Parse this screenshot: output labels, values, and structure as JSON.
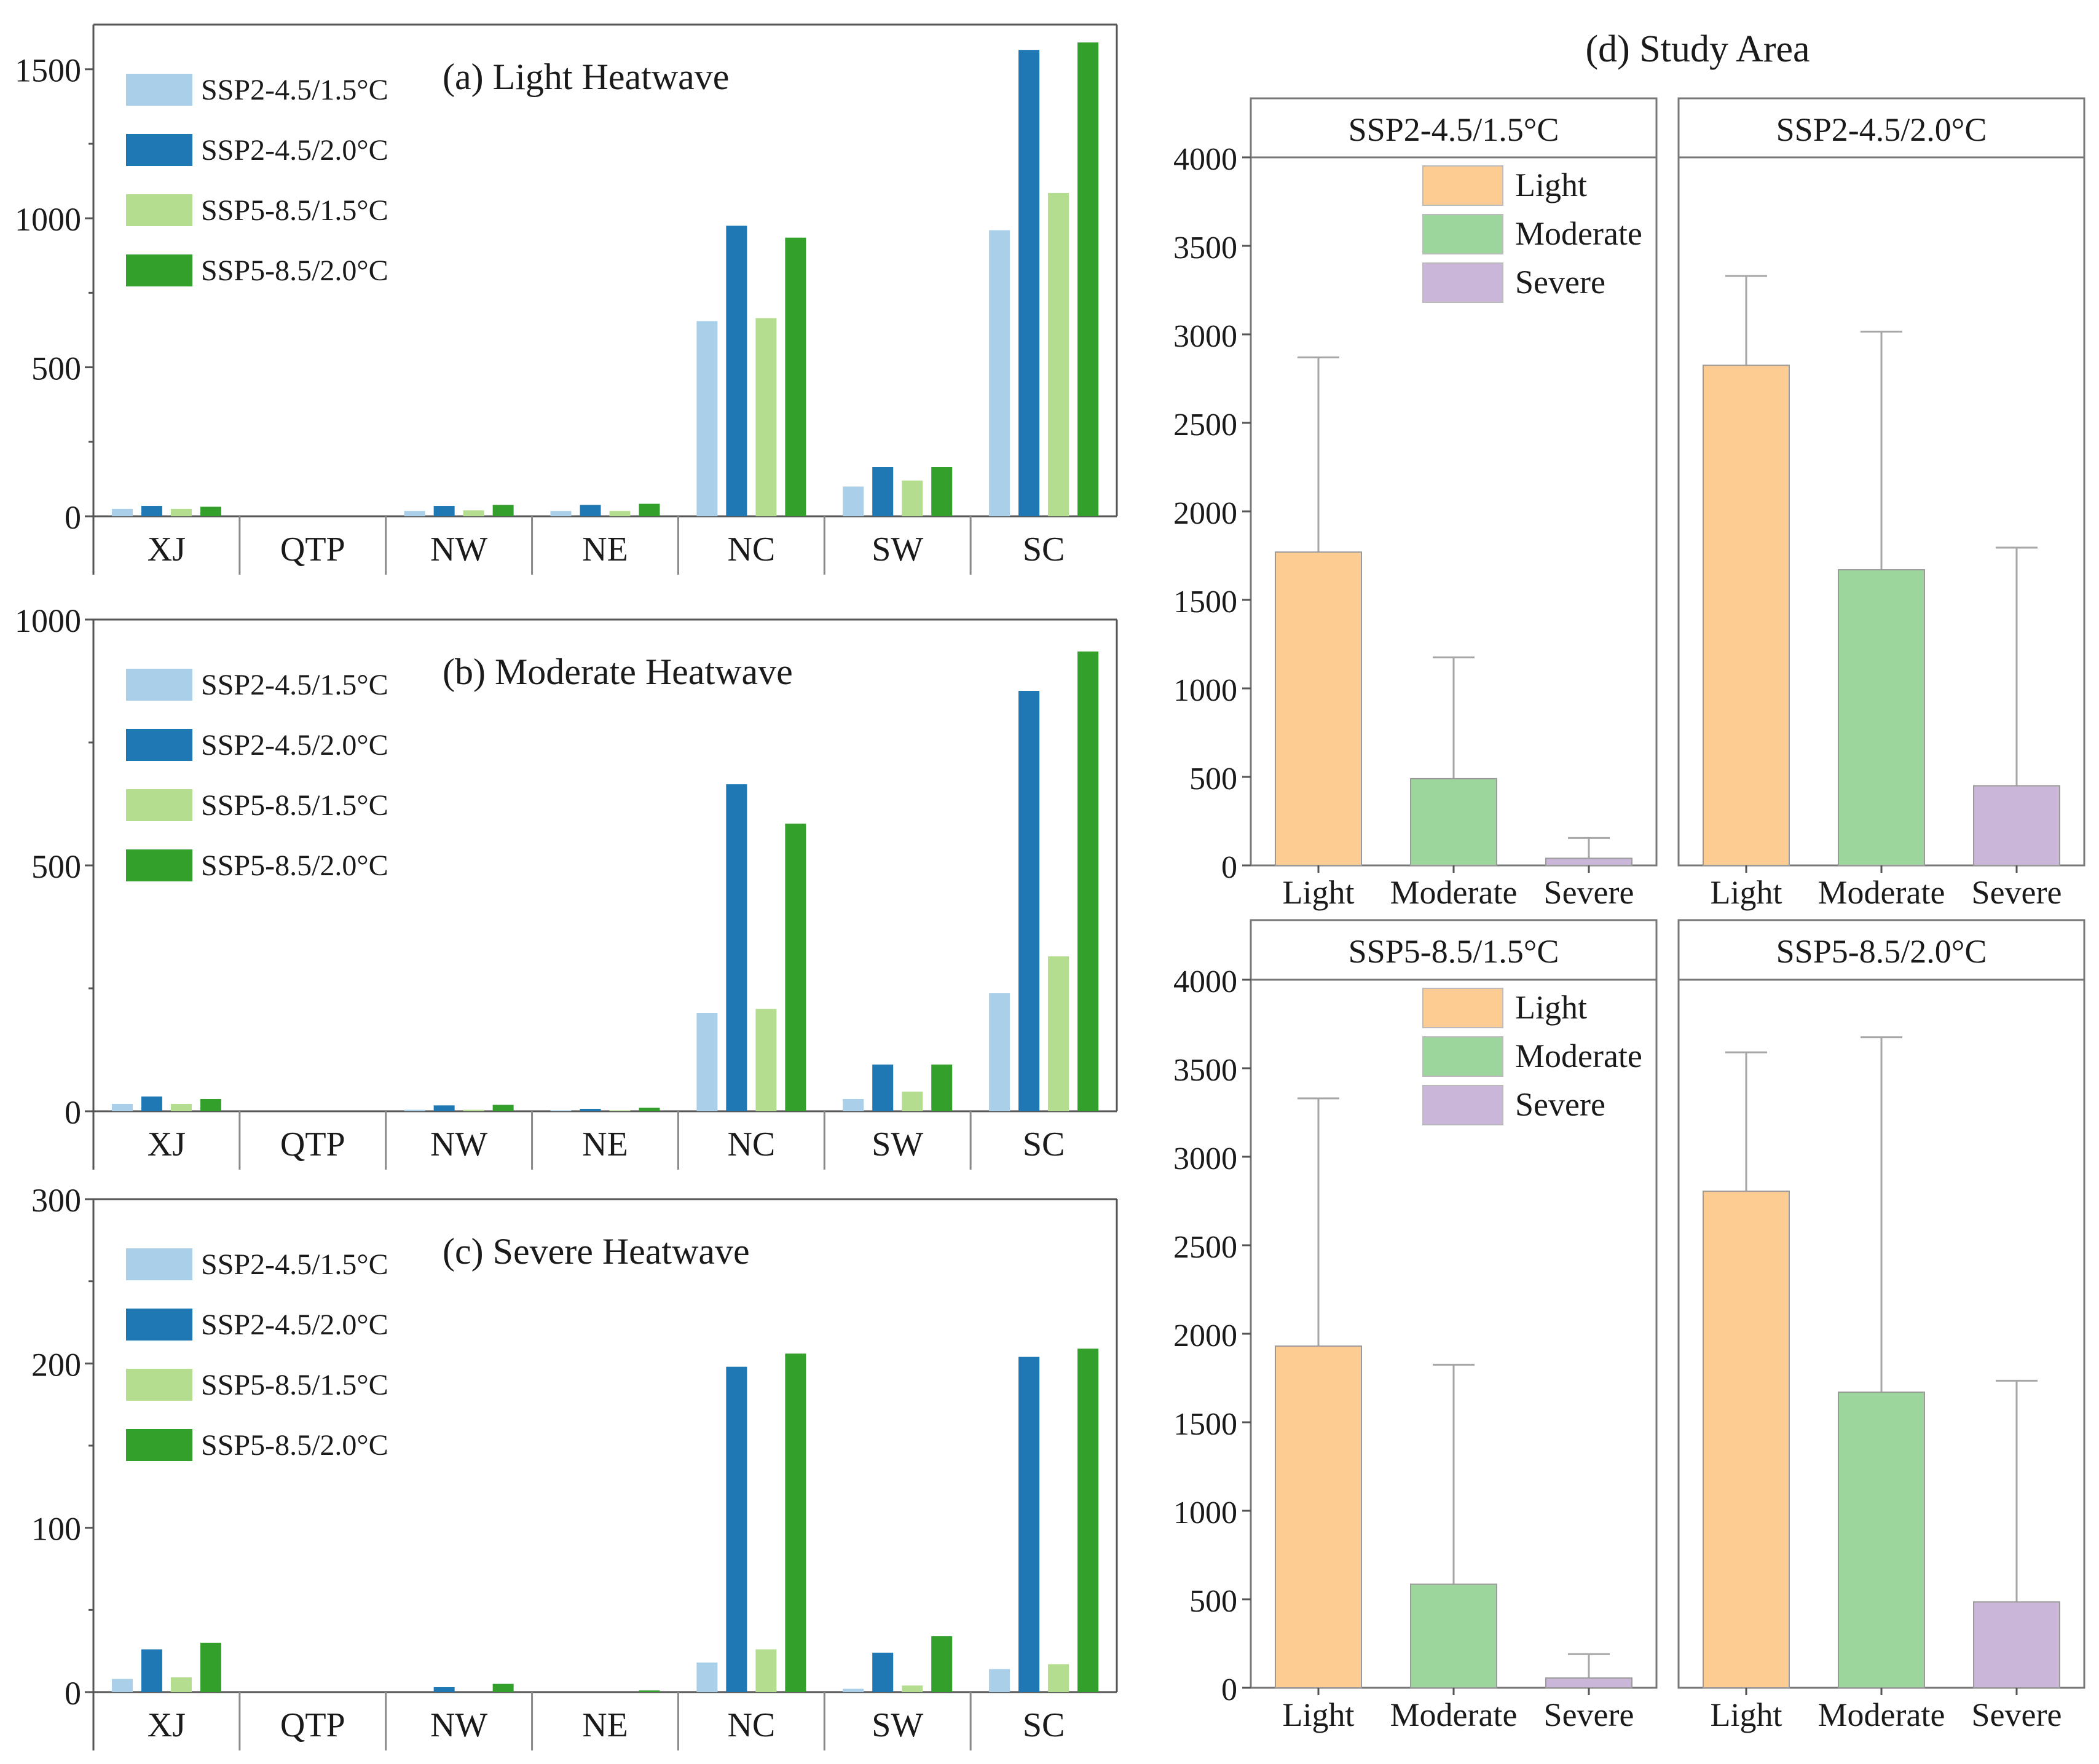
{
  "colors": {
    "ssp245_15": "#a9d0e8",
    "ssp245_20": "#1f78b4",
    "ssp585_15": "#b5dd8f",
    "ssp585_20": "#33a02c",
    "light": "#fdcc92",
    "moderate": "#9dd69c",
    "severe": "#c9b6d8",
    "axis": "#555555",
    "errbar": "#a6a6a6",
    "header_bg": "#ffffff"
  },
  "chart_data": [
    {
      "id": "a",
      "type": "bar",
      "title": "(a)  Light Heatwave",
      "categories": [
        "XJ",
        "QTP",
        "NW",
        "NE",
        "NC",
        "SW",
        "SC"
      ],
      "ylim": [
        0,
        1650
      ],
      "yticks": [
        0,
        500,
        1000,
        1500
      ],
      "minor_ticks": [
        250,
        750,
        1250
      ],
      "series": [
        {
          "name": "SSP2-4.5/1.5°C",
          "key": "ssp245_15",
          "values": [
            25,
            0,
            18,
            18,
            655,
            100,
            960
          ]
        },
        {
          "name": "SSP2-4.5/2.0°C",
          "key": "ssp245_20",
          "values": [
            35,
            0,
            35,
            38,
            975,
            165,
            1565
          ]
        },
        {
          "name": "SSP5-8.5/1.5°C",
          "key": "ssp585_15",
          "values": [
            25,
            0,
            20,
            18,
            665,
            120,
            1085
          ]
        },
        {
          "name": "SSP5-8.5/2.0°C",
          "key": "ssp585_20",
          "values": [
            32,
            0,
            38,
            42,
            935,
            165,
            1590
          ]
        }
      ]
    },
    {
      "id": "b",
      "type": "bar",
      "title": "(b)  Moderate Heatwave",
      "categories": [
        "XJ",
        "QTP",
        "NW",
        "NE",
        "NC",
        "SW",
        "SC"
      ],
      "ylim": [
        0,
        1000
      ],
      "yticks": [
        0,
        500,
        1000
      ],
      "minor_ticks": [
        250,
        750
      ],
      "series": [
        {
          "name": "SSP2-4.5/1.5°C",
          "key": "ssp245_15",
          "values": [
            15,
            0,
            3,
            2,
            200,
            25,
            240
          ]
        },
        {
          "name": "SSP2-4.5/2.0°C",
          "key": "ssp245_20",
          "values": [
            30,
            0,
            12,
            5,
            665,
            95,
            855
          ]
        },
        {
          "name": "SSP5-8.5/1.5°C",
          "key": "ssp585_15",
          "values": [
            15,
            0,
            3,
            2,
            208,
            40,
            315
          ]
        },
        {
          "name": "SSP5-8.5/2.0°C",
          "key": "ssp585_20",
          "values": [
            25,
            0,
            13,
            7,
            585,
            95,
            935
          ]
        }
      ]
    },
    {
      "id": "c",
      "type": "bar",
      "title": "(c)  Severe Heatwave",
      "categories": [
        "XJ",
        "QTP",
        "NW",
        "NE",
        "NC",
        "SW",
        "SC"
      ],
      "ylim": [
        0,
        300
      ],
      "yticks": [
        0,
        100,
        200,
        300
      ],
      "minor_ticks": [
        50,
        150,
        250
      ],
      "series": [
        {
          "name": "SSP2-4.5/1.5°C",
          "key": "ssp245_15",
          "values": [
            8,
            0,
            0,
            0,
            18,
            2,
            14
          ]
        },
        {
          "name": "SSP2-4.5/2.0°C",
          "key": "ssp245_20",
          "values": [
            26,
            0,
            3,
            0,
            198,
            24,
            204
          ]
        },
        {
          "name": "SSP5-8.5/1.5°C",
          "key": "ssp585_15",
          "values": [
            9,
            0,
            0,
            0,
            26,
            4,
            17
          ]
        },
        {
          "name": "SSP5-8.5/2.0°C",
          "key": "ssp585_20",
          "values": [
            30,
            0,
            5,
            1,
            206,
            34,
            209
          ]
        }
      ]
    },
    {
      "id": "d",
      "type": "bar",
      "title": "(d)  Study Area",
      "categories": [
        "Light",
        "Moderate",
        "Severe"
      ],
      "ylim": [
        0,
        4000
      ],
      "yticks": [
        0,
        500,
        1000,
        1500,
        2000,
        2500,
        3000,
        3500,
        4000
      ],
      "legend": [
        "Light",
        "Moderate",
        "Severe"
      ],
      "panels": [
        {
          "name": "SSP2-4.5/1.5°C",
          "values": [
            1770,
            490,
            40
          ],
          "errors_upper": [
            2870,
            1175,
            155
          ]
        },
        {
          "name": "SSP2-4.5/2.0°C",
          "values": [
            2825,
            1670,
            450
          ],
          "errors_upper": [
            3330,
            3015,
            1795
          ]
        },
        {
          "name": "SSP5-8.5/1.5°C",
          "values": [
            1930,
            585,
            55
          ],
          "errors_upper": [
            3330,
            1825,
            190
          ]
        },
        {
          "name": "SSP5-8.5/2.0°C",
          "values": [
            2805,
            1670,
            485
          ],
          "errors_upper": [
            3590,
            3675,
            1735
          ]
        }
      ]
    }
  ]
}
